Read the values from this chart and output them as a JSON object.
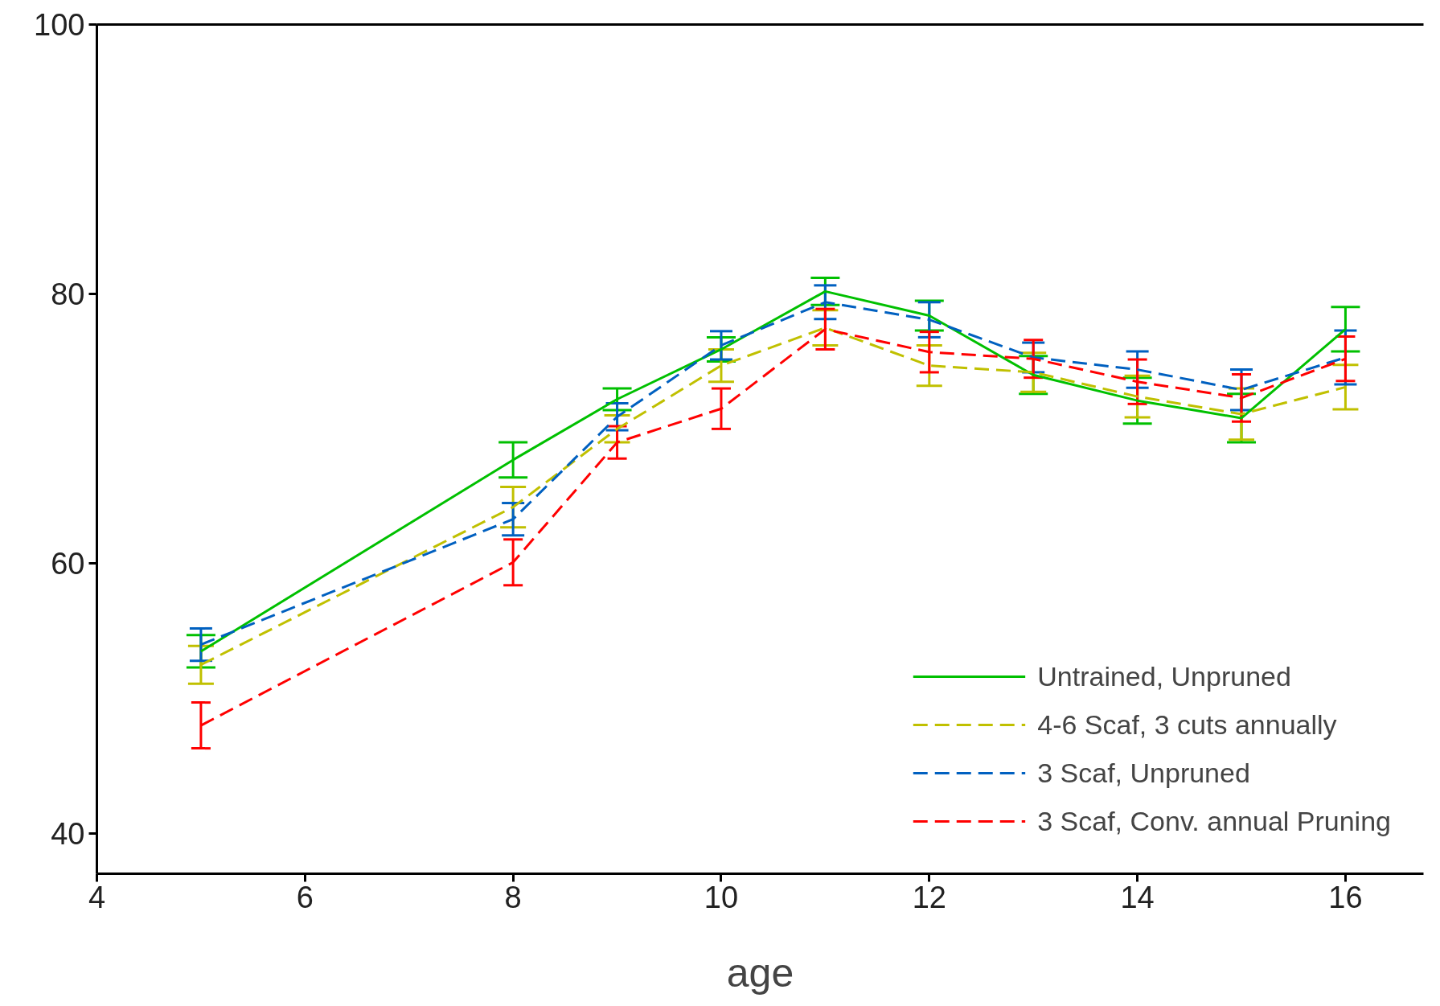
{
  "chart_data": {
    "type": "line",
    "xlabel": "age",
    "x": [
      5,
      8,
      9,
      10,
      11,
      12,
      13,
      14,
      15,
      16
    ],
    "xlim": [
      4,
      16.75
    ],
    "xticks": [
      4,
      6,
      8,
      10,
      12,
      14,
      16
    ],
    "ylim": [
      37,
      100
    ],
    "yticks": [
      40,
      60,
      80,
      100
    ],
    "grid": false,
    "legend": "bottom right",
    "marker": "none",
    "series": [
      {
        "name": "Untrained, Unpruned",
        "color": "#00c000",
        "line_style": "solid",
        "values": [
          53.5,
          67.7,
          72.2,
          75.9,
          80.2,
          78.4,
          74.0,
          72.1,
          70.8,
          77.4
        ],
        "errors": [
          1.2,
          1.3,
          0.8,
          0.9,
          1.0,
          1.1,
          1.4,
          1.7,
          1.8,
          1.65
        ]
      },
      {
        "name": "4-6 Scaf, 3 cuts annually",
        "color": "#c0c000",
        "line_style": "dashed",
        "values": [
          52.5,
          64.2,
          70.0,
          74.7,
          77.5,
          74.7,
          74.2,
          72.4,
          71.1,
          73.1
        ],
        "errors": [
          1.4,
          1.5,
          1.0,
          1.2,
          1.3,
          1.5,
          1.45,
          1.55,
          1.9,
          1.65
        ]
      },
      {
        "name": "3 Scaf, Unpruned",
        "color": "#0060c0",
        "line_style": "dashed",
        "values": [
          54.0,
          63.3,
          70.9,
          76.2,
          79.4,
          78.1,
          75.3,
          74.4,
          72.9,
          75.3
        ],
        "errors": [
          1.2,
          1.2,
          1.0,
          1.05,
          1.25,
          1.3,
          1.1,
          1.35,
          1.5,
          2.0
        ]
      },
      {
        "name": "3 Scaf, Conv. annual Pruning",
        "color": "#ff0000",
        "line_style": "dashed",
        "values": [
          48.0,
          60.1,
          69.0,
          71.5,
          77.4,
          75.7,
          75.2,
          73.5,
          72.3,
          75.2
        ],
        "errors": [
          1.7,
          1.7,
          1.2,
          1.5,
          1.5,
          1.5,
          1.4,
          1.65,
          1.75,
          1.65
        ]
      }
    ]
  }
}
